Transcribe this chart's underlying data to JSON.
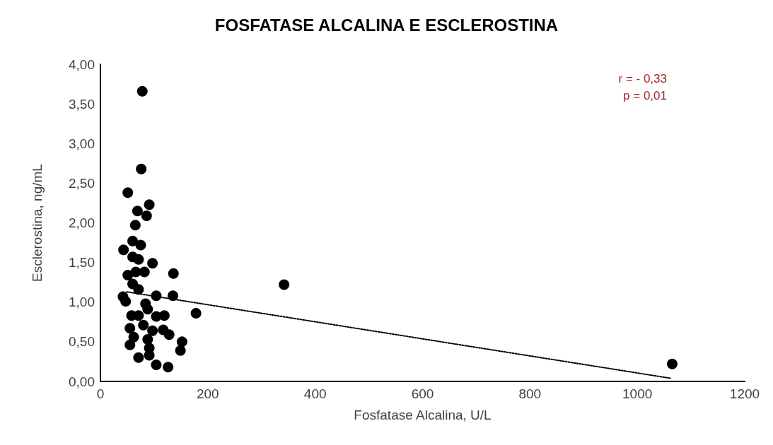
{
  "chart_data": {
    "type": "scatter",
    "title": "FOSFATASE ALCALINA E ESCLEROSTINA",
    "xlabel": "Fosfatase Alcalina, U/L",
    "ylabel": "Esclerostina, ng/mL",
    "annotations": [
      "r = - 0,33",
      "p = 0,01"
    ],
    "series": [
      {
        "color": "#000000",
        "x": [
          78,
          76,
          51,
          91,
          69,
          86,
          65,
          43,
          60,
          75,
          60,
          71,
          97,
          136,
          51,
          66,
          82,
          60,
          71,
          42,
          47,
          104,
          135,
          178,
          84,
          88,
          58,
          71,
          104,
          119,
          55,
          80,
          97,
          117,
          128,
          62,
          88,
          152,
          55,
          91,
          149,
          71,
          91,
          104,
          126,
          342,
          1065
        ],
        "values": [
          3.66,
          2.68,
          2.38,
          2.23,
          2.15,
          2.09,
          1.97,
          1.66,
          1.77,
          1.72,
          1.57,
          1.54,
          1.49,
          1.36,
          1.34,
          1.38,
          1.38,
          1.23,
          1.16,
          1.07,
          1.01,
          1.08,
          1.08,
          0.86,
          0.98,
          0.91,
          0.83,
          0.83,
          0.82,
          0.83,
          0.67,
          0.71,
          0.64,
          0.65,
          0.59,
          0.56,
          0.53,
          0.5,
          0.46,
          0.42,
          0.39,
          0.3,
          0.33,
          0.21,
          0.18,
          1.22,
          0.22
        ]
      },
      {
        "type": "line",
        "color": "#000000",
        "line_style": "dotted",
        "marker": "none",
        "x": [
          49,
          1062
        ],
        "values": [
          1.13,
          0.04
        ]
      }
    ],
    "marker": "circle",
    "grid": false,
    "xlim": [
      0,
      1200
    ],
    "xticks": [
      0,
      200,
      400,
      600,
      800,
      1000,
      1200
    ],
    "ylim": [
      0,
      4
    ],
    "yticks": [
      {
        "value": 0,
        "label": "0,00"
      },
      {
        "value": 0.5,
        "label": "0,50"
      },
      {
        "value": 1,
        "label": "1,00"
      },
      {
        "value": 1.5,
        "label": "1,50"
      },
      {
        "value": 2,
        "label": "2,00"
      },
      {
        "value": 2.5,
        "label": "2,50"
      },
      {
        "value": 3,
        "label": "3,00"
      },
      {
        "value": 3.5,
        "label": "3,50"
      },
      {
        "value": 4,
        "label": "4,00"
      }
    ]
  }
}
